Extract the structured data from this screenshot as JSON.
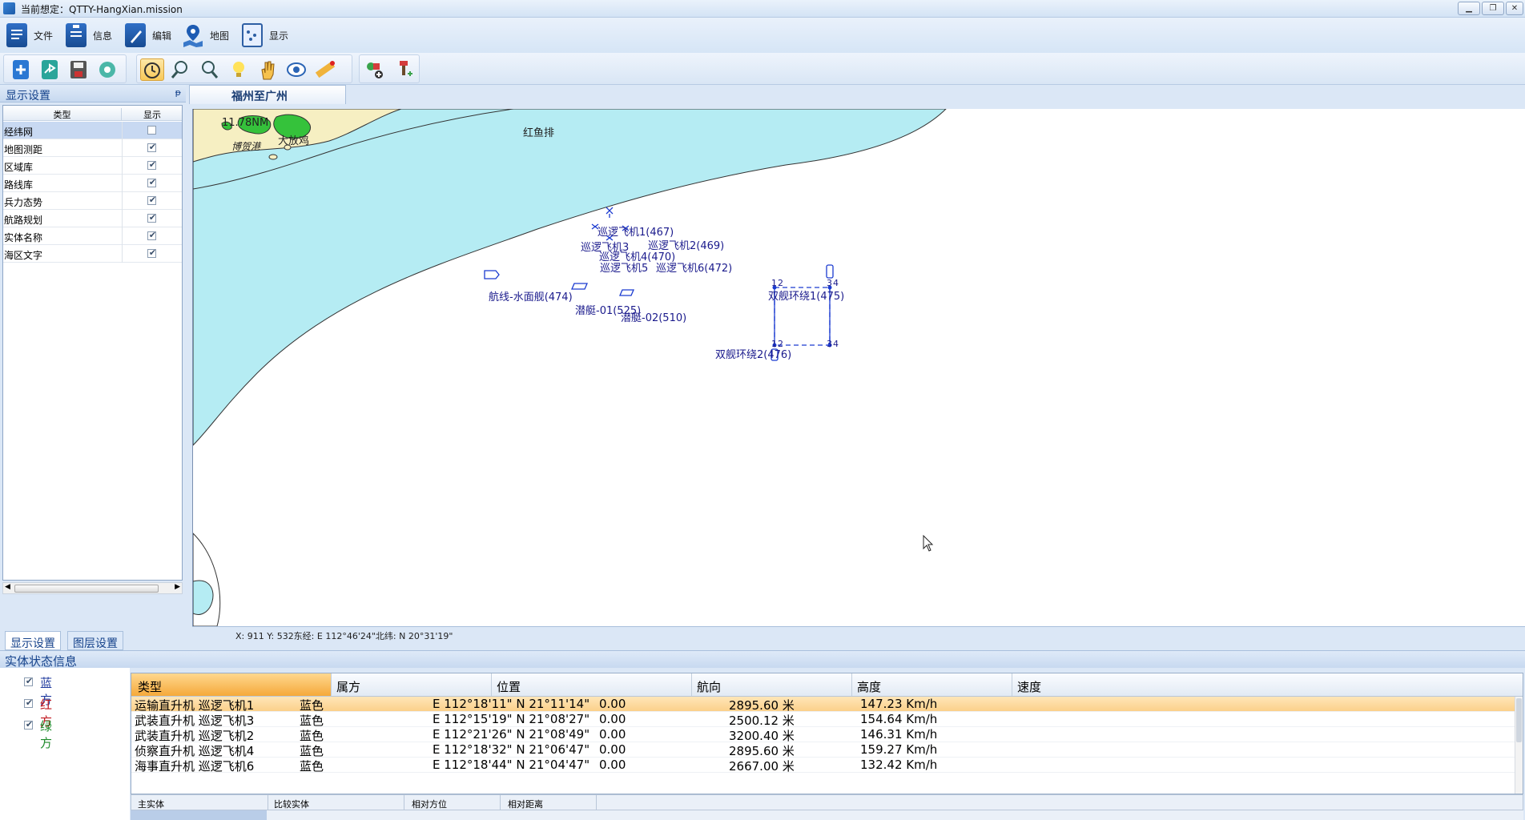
{
  "window": {
    "title": "当前想定：QTTY-HangXian.mission",
    "buttons": [
      "minimize",
      "restore",
      "close"
    ]
  },
  "menu": [
    {
      "label": "文件",
      "icon": "file-icon"
    },
    {
      "label": "信息",
      "icon": "clipboard-icon"
    },
    {
      "label": "编辑",
      "icon": "pencil-icon"
    },
    {
      "label": "地图",
      "icon": "map-pin-icon"
    },
    {
      "label": "显示",
      "icon": "display-icon"
    }
  ],
  "toolbar": {
    "buttons": [
      "new-icon",
      "export-icon",
      "save-icon",
      "settings-icon",
      "rotate-icon",
      "zoom-in-icon",
      "zoom-out-icon",
      "light-bulb-icon",
      "pan-hand-icon",
      "eye-icon",
      "ruler-icon",
      "add-layer-icon",
      "add-marker-icon"
    ],
    "active": "rotate-icon"
  },
  "left_panel": {
    "title": "显示设置",
    "pin_glyph": "ᵽ",
    "columns": [
      "类型",
      "显示"
    ],
    "rows": [
      {
        "name": "经纬网",
        "checked": false
      },
      {
        "name": "地图测距",
        "checked": true
      },
      {
        "name": "区域库",
        "checked": true
      },
      {
        "name": "路线库",
        "checked": true
      },
      {
        "name": "兵力态势",
        "checked": true
      },
      {
        "name": "航路规划",
        "checked": true
      },
      {
        "name": "实体名称",
        "checked": true
      },
      {
        "name": "海区文字",
        "checked": true
      }
    ],
    "tabs": [
      "显示设置",
      "图层设置"
    ]
  },
  "map": {
    "tab_title": "福州至广州",
    "place_labels": {
      "scale": "11.78NM",
      "port": "博贺港",
      "island": "大放鸡",
      "reef": "红鱼排"
    },
    "unit_labels": {
      "patrol1": "巡逻飞机1(467)",
      "patrol3": "巡逻飞机3",
      "patrol2": "巡逻飞机2(469)",
      "patrol4": "巡逻飞机4(470)",
      "patrol5": "巡逻飞机5",
      "patrol6": "巡逻飞机6(472)",
      "surface_ship": "航线-水面舰(474)",
      "sub1": "潜艇-01(525)",
      "sub2": "潜艇-02(510)",
      "twin1": "双舰环绕1(475)",
      "twin2": "双舰环绕2(476)"
    },
    "route_corner_labels": [
      "1",
      "2",
      "3",
      "4",
      "1",
      "2",
      "3",
      "4"
    ],
    "coord_text": "X: 911  Y: 532东经: E 112°46'24\"北纬: N 20°31'19\""
  },
  "status": {
    "title": "实体状态信息",
    "factions": [
      {
        "label": "蓝方",
        "color": "#1f3a9e"
      },
      {
        "label": "红方",
        "color": "#c0141b"
      },
      {
        "label": "绿方",
        "color": "#1d8a2a"
      }
    ],
    "table_headers": [
      "类型",
      "属方",
      "位置",
      "航向",
      "高度",
      "速度"
    ],
    "rows": [
      [
        "运输直升机  巡逻飞机1",
        "蓝色",
        "E 112°18'11\"  N 21°11'14\"",
        "0.00",
        "2895.60 米",
        "147.23 Km/h"
      ],
      [
        "武装直升机  巡逻飞机3",
        "蓝色",
        "E 112°15'19\"  N 21°08'27\"",
        "0.00",
        "2500.12 米",
        "154.64 Km/h"
      ],
      [
        "武装直升机  巡逻飞机2",
        "蓝色",
        "E 112°21'26\"  N 21°08'49\"",
        "0.00",
        "3200.40 米",
        "146.31 Km/h"
      ],
      [
        "侦察直升机  巡逻飞机4",
        "蓝色",
        "E 112°18'32\"  N 21°06'47\"",
        "0.00",
        "2895.60 米",
        "159.27 Km/h"
      ],
      [
        "海事直升机  巡逻飞机6",
        "蓝色",
        "E 112°18'44\"  N 21°04'47\"",
        "0.00",
        "2667.00 米",
        "132.42 Km/h"
      ]
    ],
    "selected_row": 0,
    "relation_headers": [
      "主实体",
      "比较实体",
      "相对方位",
      "相对距离"
    ]
  },
  "colors": {
    "accent": "#15428b",
    "selected_orange": "#f5a93a",
    "sea_shallow": "#b5ecf3",
    "land_green": "#35c23b",
    "land_beige": "#f6efc2",
    "unit_blue": "#1a1a8c"
  }
}
